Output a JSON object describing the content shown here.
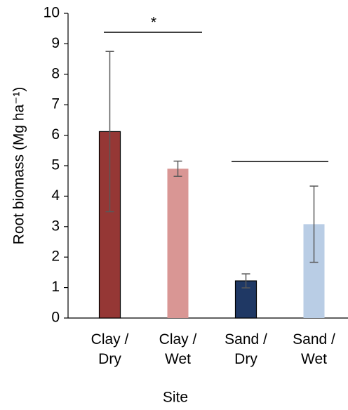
{
  "chart_data": {
    "type": "bar",
    "x_label": "Site",
    "y_label": "Root biomass (Mg ha⁻¹)",
    "categories": [
      "Clay / Dry",
      "Clay / Wet",
      "Sand / Dry",
      "Sand / Wet"
    ],
    "values": [
      6.12,
      4.9,
      1.22,
      3.08
    ],
    "errors": [
      2.63,
      0.25,
      0.23,
      1.25
    ],
    "colors": [
      "#953735",
      "#d99694",
      "#1f3864",
      "#b9cde5"
    ],
    "outlined": [
      true,
      false,
      true,
      false
    ],
    "ylim": [
      0,
      10
    ],
    "yticks": [
      0,
      1,
      2,
      3,
      4,
      5,
      6,
      7,
      8,
      9,
      10
    ],
    "grid": false,
    "annotations": [
      "*"
    ]
  }
}
